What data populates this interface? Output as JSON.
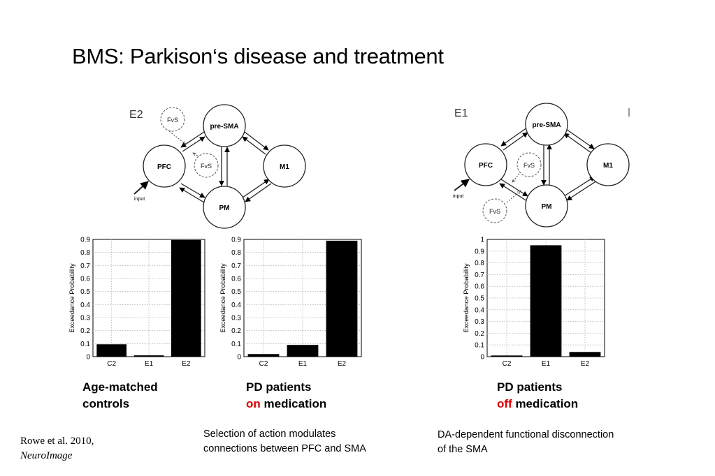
{
  "title": "BMS: Parkison‘s disease and treatment",
  "networks": [
    {
      "label": "E2",
      "nodes": {
        "pfc": "PFC",
        "pre_sma": "pre-SMA",
        "m1": "M1",
        "pm": "PM"
      },
      "modulators": [
        "FvS",
        "FvS"
      ],
      "input_label": "input"
    },
    {
      "label": "E1",
      "nodes": {
        "pfc": "PFC",
        "pre_sma": "pre-SMA",
        "m1": "M1",
        "pm": "PM"
      },
      "modulators": [
        "FvS",
        "FvS"
      ],
      "input_label": "input"
    }
  ],
  "chart_data": [
    {
      "type": "bar",
      "categories": [
        "C2",
        "E1",
        "E2"
      ],
      "values": [
        0.095,
        0.01,
        0.895
      ],
      "ylabel": "Exceedance Probability",
      "ylim": [
        0,
        0.9
      ],
      "yticks": [
        "0",
        "0.1",
        "0.2",
        "0.3",
        "0.4",
        "0.5",
        "0.6",
        "0.7",
        "0.8",
        "0.9"
      ],
      "grid": true
    },
    {
      "type": "bar",
      "categories": [
        "C2",
        "E1",
        "E2"
      ],
      "values": [
        0.02,
        0.09,
        0.89
      ],
      "ylabel": "Exceedance Probability",
      "ylim": [
        0,
        0.9
      ],
      "yticks": [
        "0",
        "0.1",
        "0.2",
        "0.3",
        "0.4",
        "0.5",
        "0.6",
        "0.7",
        "0.8",
        "0.9"
      ],
      "grid": true
    },
    {
      "type": "bar",
      "categories": [
        "C2",
        "E1",
        "E2"
      ],
      "values": [
        0.01,
        0.95,
        0.04
      ],
      "ylabel": "Exceedance Probability",
      "ylim": [
        0,
        1
      ],
      "yticks": [
        "0",
        "0.1",
        "0.2",
        "0.3",
        "0.4",
        "0.5",
        "0.6",
        "0.7",
        "0.8",
        "0.9",
        "1"
      ],
      "grid": true
    }
  ],
  "captions": {
    "age_line1": "Age-matched",
    "age_line2": "controls",
    "on_line1": "PD patients",
    "on_word": "on",
    "on_rest": " medication",
    "off_line1": "PD patients",
    "off_word": "off",
    "off_rest": " medication"
  },
  "notes": {
    "left_line1": "Selection of action modulates",
    "left_line2": "connections between PFC and SMA",
    "right_line1": "DA-dependent functional disconnection",
    "right_line2": "of the SMA"
  },
  "reference": {
    "authors": "Rowe et al. 2010,",
    "journal": "NeuroImage"
  },
  "colors": {
    "highlight": "#e00000",
    "bar": "#000000",
    "grid": "#b0b0b0"
  }
}
